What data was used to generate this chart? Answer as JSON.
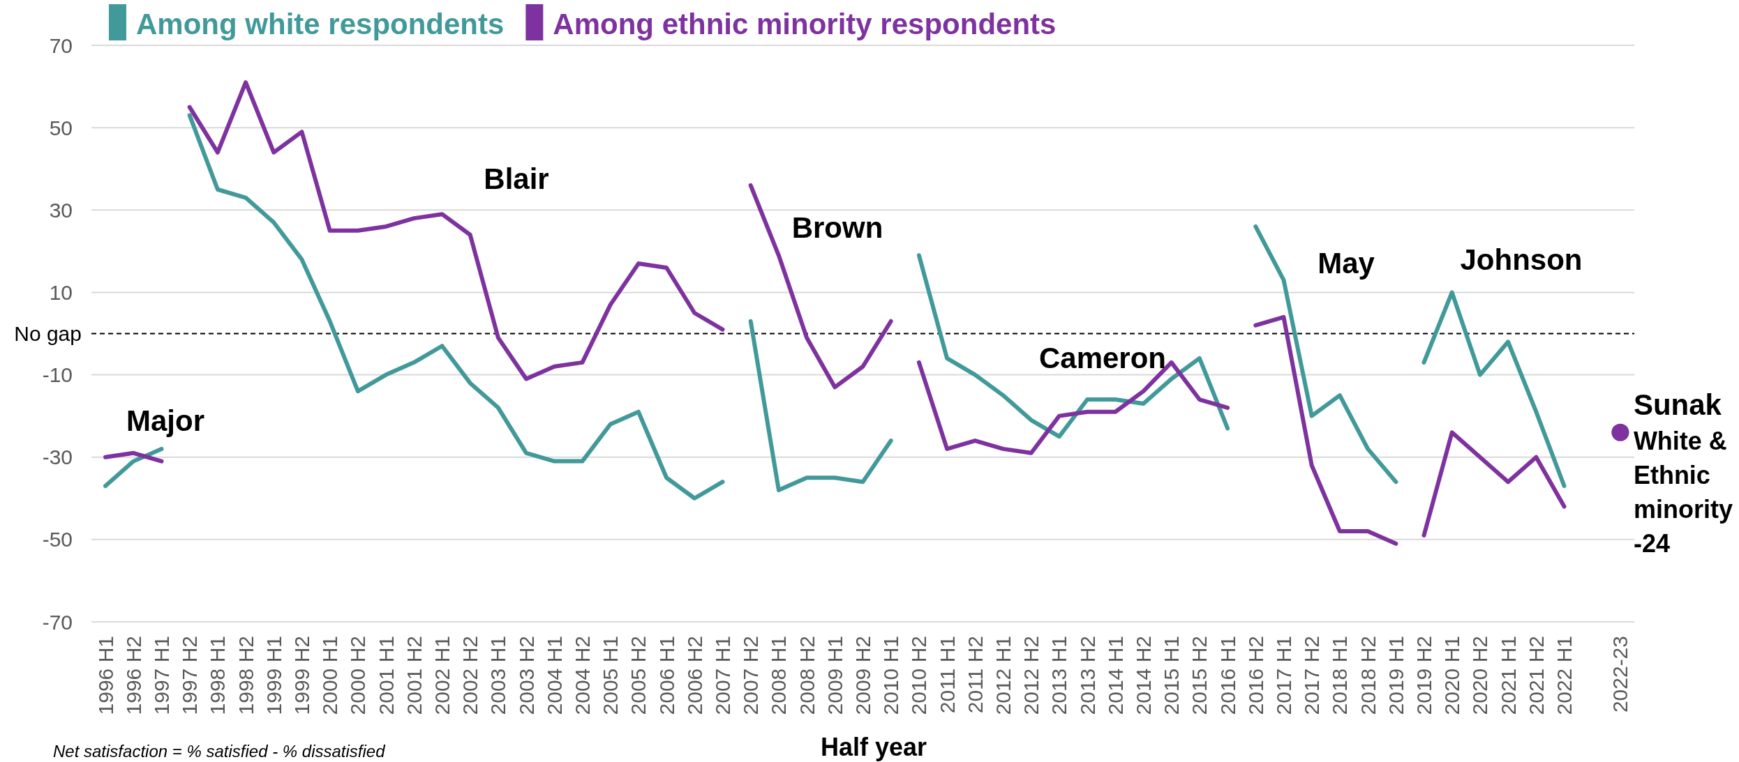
{
  "chart_data": {
    "type": "line",
    "categories": [
      "1996 H1",
      "1996 H2",
      "1997 H1",
      "1997 H2",
      "1998 H1",
      "1998 H2",
      "1999 H1",
      "1999 H2",
      "2000 H1",
      "2000 H2",
      "2001 H1",
      "2001 H2",
      "2002 H1",
      "2002 H2",
      "2003 H1",
      "2003 H2",
      "2004 H1",
      "2004 H2",
      "2005 H1",
      "2005 H2",
      "2006 H1",
      "2006 H2",
      "2007 H1",
      "2007 H2",
      "2008 H1",
      "2008 H2",
      "2009 H1",
      "2009 H2",
      "2010 H1",
      "2010 H2",
      "2011 H1",
      "2011 H2",
      "2012 H1",
      "2012 H2",
      "2013 H1",
      "2013 H2",
      "2014 H1",
      "2014 H2",
      "2015 H1",
      "2015 H2",
      "2016 H1",
      "2016 H2",
      "2017 H1",
      "2017 H2",
      "2018 H1",
      "2018 H2",
      "2019 H1",
      "2019 H2",
      "2020 H1",
      "2020 H2",
      "2021 H1",
      "2021 H2",
      "2022 H1",
      null,
      "2022-23"
    ],
    "series": [
      {
        "name": "Among white respondents",
        "color": "#41999a",
        "x": [
          "1996 H1",
          "1996 H2",
          "1997 H1"
        ],
        "values": [
          -37,
          -31,
          -28
        ]
      },
      {
        "name": "Among ethnic minority respondents",
        "color": "#7e329f",
        "x": [
          "1996 H1",
          "1996 H2",
          "1997 H1"
        ],
        "values": [
          -30,
          -29,
          -31
        ]
      },
      {
        "color": "#41999a",
        "x": [
          "1997 H2",
          "1998 H1",
          "1998 H2",
          "1999 H1",
          "1999 H2",
          "2000 H1",
          "2000 H2",
          "2001 H1",
          "2001 H2",
          "2002 H1",
          "2002 H2",
          "2003 H1",
          "2003 H2",
          "2004 H1",
          "2004 H2",
          "2005 H1",
          "2005 H2",
          "2006 H1",
          "2006 H2",
          "2007 H1"
        ],
        "values": [
          53,
          35,
          33,
          27,
          18,
          3,
          -14,
          -10,
          -7,
          -3,
          -12,
          -18,
          -29,
          -31,
          -31,
          -22,
          -19,
          -35,
          -40,
          -36
        ]
      },
      {
        "color": "#7e329f",
        "x": [
          "1997 H2",
          "1998 H1",
          "1998 H2",
          "1999 H1",
          "1999 H2",
          "2000 H1",
          "2000 H2",
          "2001 H1",
          "2001 H2",
          "2002 H1",
          "2002 H2",
          "2003 H1",
          "2003 H2",
          "2004 H1",
          "2004 H2",
          "2005 H1",
          "2005 H2",
          "2006 H1",
          "2006 H2",
          "2007 H1"
        ],
        "values": [
          55,
          44,
          61,
          44,
          49,
          25,
          25,
          26,
          28,
          29,
          24,
          -1,
          -11,
          -8,
          -7,
          7,
          17,
          16,
          5,
          1
        ]
      },
      {
        "color": "#41999a",
        "x": [
          "2007 H2",
          "2008 H1",
          "2008 H2",
          "2009 H1",
          "2009 H2",
          "2010 H1"
        ],
        "values": [
          3,
          -38,
          -35,
          -35,
          -36,
          -26
        ]
      },
      {
        "color": "#7e329f",
        "x": [
          "2007 H2",
          "2008 H1",
          "2008 H2",
          "2009 H1",
          "2009 H2",
          "2010 H1"
        ],
        "values": [
          36,
          19,
          -1,
          -13,
          -8,
          3
        ]
      },
      {
        "color": "#41999a",
        "x": [
          "2010 H2",
          "2011 H1",
          "2011 H2",
          "2012 H1",
          "2012 H2",
          "2013 H1",
          "2013 H2",
          "2014 H1",
          "2014 H2",
          "2015 H1",
          "2015 H2",
          "2016 H1"
        ],
        "values": [
          19,
          -6,
          -10,
          -15,
          -21,
          -25,
          -16,
          -16,
          -17,
          -11,
          -6,
          -23
        ]
      },
      {
        "color": "#7e329f",
        "x": [
          "2010 H2",
          "2011 H1",
          "2011 H2",
          "2012 H1",
          "2012 H2",
          "2013 H1",
          "2013 H2",
          "2014 H1",
          "2014 H2",
          "2015 H1",
          "2015 H2",
          "2016 H1"
        ],
        "values": [
          -7,
          -28,
          -26,
          -28,
          -29,
          -20,
          -19,
          -19,
          -14,
          -7,
          -16,
          -18
        ]
      },
      {
        "color": "#41999a",
        "x": [
          "2016 H2",
          "2017 H1",
          "2017 H2",
          "2018 H1",
          "2018 H2",
          "2019 H1"
        ],
        "values": [
          26,
          13,
          -20,
          -15,
          -28,
          -36
        ]
      },
      {
        "color": "#7e329f",
        "x": [
          "2016 H2",
          "2017 H1",
          "2017 H2",
          "2018 H1",
          "2018 H2",
          "2019 H1"
        ],
        "values": [
          2,
          4,
          -32,
          -48,
          -48,
          -51
        ]
      },
      {
        "color": "#41999a",
        "x": [
          "2019 H2",
          "2020 H1",
          "2020 H2",
          "2021 H1",
          "2021 H2",
          "2022 H1"
        ],
        "values": [
          -7,
          10,
          -10,
          -2,
          -19,
          -37
        ]
      },
      {
        "color": "#7e329f",
        "x": [
          "2019 H2",
          "2020 H1",
          "2020 H2",
          "2021 H1",
          "2021 H2",
          "2022 H1"
        ],
        "values": [
          -49,
          -24,
          -30,
          -36,
          -30,
          -42
        ]
      },
      {
        "type": "scatter",
        "marker": "circle",
        "color": "#7e329f",
        "x": [
          "2022-23"
        ],
        "values": [
          -24
        ]
      }
    ],
    "ylim": [
      -70,
      70
    ],
    "yticks": [
      -70,
      -50,
      -30,
      -10,
      10,
      30,
      50,
      70
    ],
    "grid": "y",
    "legend": "top left",
    "ref_lines": [
      {
        "axis": "y",
        "value": 0,
        "label": "No gap",
        "color": "#000000",
        "line_style": "dashed"
      }
    ],
    "xlabel": "Half year",
    "annotations": [
      "Net satisfaction = % satisfied - % dissatisfied",
      "Major",
      "Blair",
      "Brown",
      "Cameron",
      "May",
      "Johnson",
      {
        "text": "Sunak",
        "x": "2022-23",
        "y": -24
      },
      {
        "text": "White & Ethnic minority -24",
        "x": "2022-23",
        "y": -24
      }
    ]
  }
}
